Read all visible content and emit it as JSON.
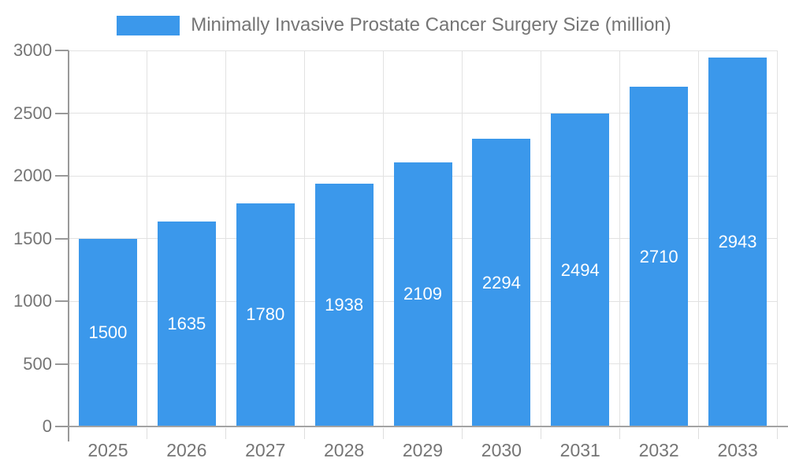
{
  "legend": {
    "label": "Minimally Invasive Prostate Cancer Surgery Size (million)"
  },
  "chart_data": {
    "type": "bar",
    "title": "Minimally Invasive Prostate Cancer Surgery Size (million)",
    "series_name": "Minimally Invasive Prostate Cancer Surgery Size (million)",
    "categories": [
      "2025",
      "2026",
      "2027",
      "2028",
      "2029",
      "2030",
      "2031",
      "2032",
      "2033"
    ],
    "values": [
      1500,
      1635,
      1780,
      1938,
      2109,
      2294,
      2494,
      2710,
      2943
    ],
    "data_labels_shown": true,
    "data_label_position": "inside-center",
    "xlabel": "",
    "ylabel": "",
    "ylim": [
      0,
      3000
    ],
    "y_ticks": [
      0,
      500,
      1000,
      1500,
      2000,
      2500,
      3000
    ],
    "grid": true,
    "legend_position": "top-center",
    "bar_color": "#3b98eb",
    "bar_label_color": "#ffffff",
    "axis_text_color": "#757575",
    "axis_line_color": "#999999",
    "grid_color": "#e2e2e2",
    "background_color": "#ffffff"
  }
}
